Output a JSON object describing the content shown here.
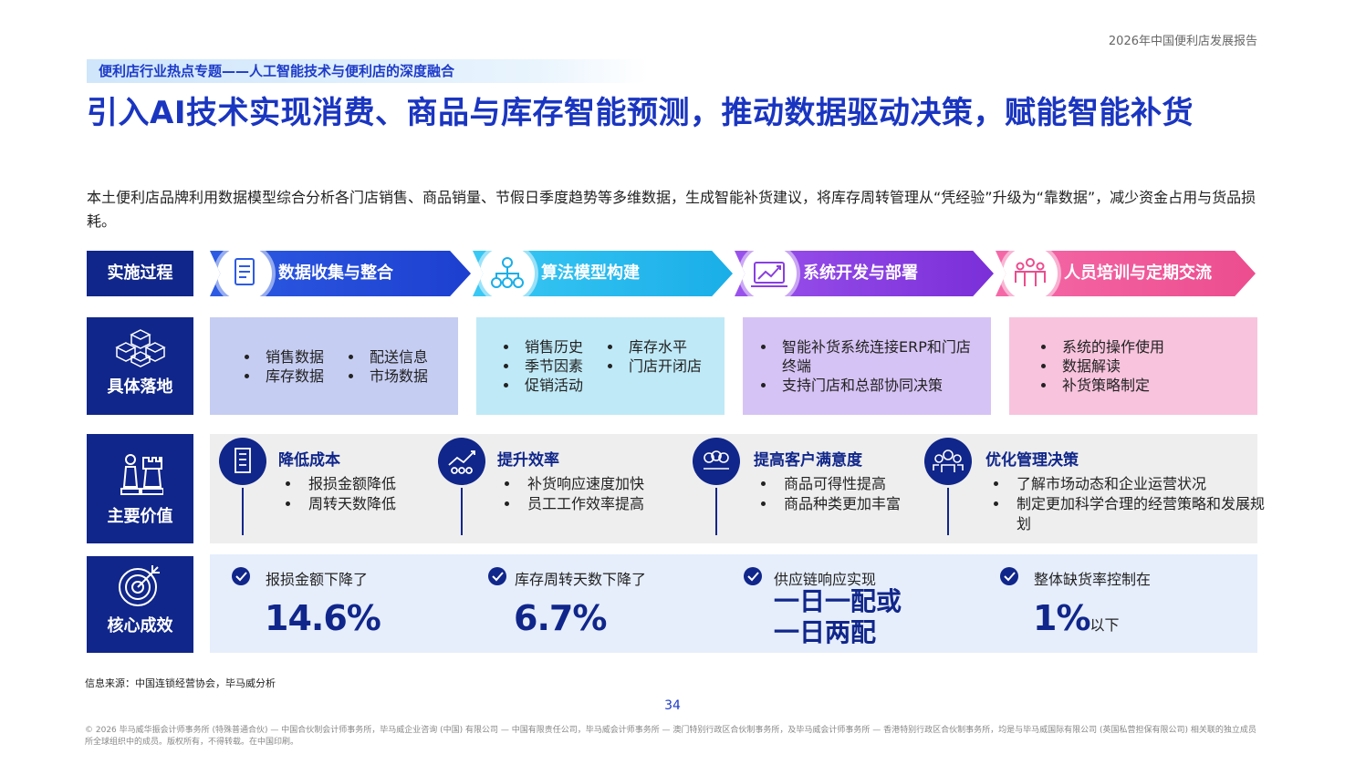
{
  "header": {
    "report": "2026年中国便利店发展报告",
    "topic": "便利店行业热点专题——人工智能技术与便利店的深度融合",
    "title": "引入AI技术实现消费、商品与库存智能预测，推动数据驱动决策，赋能智能补货",
    "intro": "本土便利店品牌利用数据模型综合分析各门店销售、商品销量、节假日季度趋势等多维数据，生成智能补货建议，将库存周转管理从“凭经验”升级为“靠数据”，减少资金占用与货品损耗。"
  },
  "rows": {
    "process": {
      "label": "实施过程",
      "steps": [
        "数据收集与整合",
        "算法模型构建",
        "系统开发与部署",
        "人员培训与定期交流"
      ]
    },
    "details": {
      "label": "具体落地",
      "groups": [
        [
          [
            "销售数据",
            "库存数据"
          ],
          [
            "配送信息",
            "市场数据"
          ]
        ],
        [
          [
            "销售历史",
            "季节因素",
            "促销活动"
          ],
          [
            "库存水平",
            "门店开闭店"
          ]
        ],
        [
          [
            "智能补货系统连接ERP和门店终端",
            "支持门店和总部协同决策"
          ]
        ],
        [
          [
            "系统的操作使用",
            "数据解读",
            "补货策略制定"
          ]
        ]
      ]
    },
    "values": {
      "label": "主要价值",
      "items": [
        {
          "title": "降低成本",
          "points": [
            "报损金额降低",
            "周转天数降低"
          ]
        },
        {
          "title": "提升效率",
          "points": [
            "补货响应速度加快",
            "员工工作效率提高"
          ]
        },
        {
          "title": "提高客户满意度",
          "points": [
            "商品可得性提高",
            "商品种类更加丰富"
          ]
        },
        {
          "title": "优化管理决策",
          "points": [
            "了解市场动态和企业运营状况",
            "制定更加科学合理的经营策略和发展规划"
          ]
        }
      ]
    },
    "results": {
      "label": "核心成效",
      "items": [
        {
          "text": "报损金额下降了",
          "figure": "14.6%"
        },
        {
          "text": "库存周转天数下降了",
          "figure": "6.7%"
        },
        {
          "text": "供应链响应实现",
          "figure": "一日一配或一日两配"
        },
        {
          "text": "整体缺货率控制在",
          "figure": "1%",
          "suffix": "以下"
        }
      ]
    }
  },
  "footer": {
    "source": "信息来源：中国连锁经营协会，毕马威分析",
    "page": "34",
    "copyright": "© 2026 毕马威华振会计师事务所 (特殊普通合伙) — 中国合伙制会计师事务所，毕马威企业咨询 (中国) 有限公司 — 中国有限责任公司，毕马威会计师事务所 — 澳门特别行政区合伙制事务所，及毕马威会计师事务所 — 香港特别行政区合伙制事务所，均是与毕马威国际有限公司 (英国私营担保有限公司) 相关联的独立成员所全球组织中的成员。版权所有，不得转载。在中国印刷。"
  }
}
